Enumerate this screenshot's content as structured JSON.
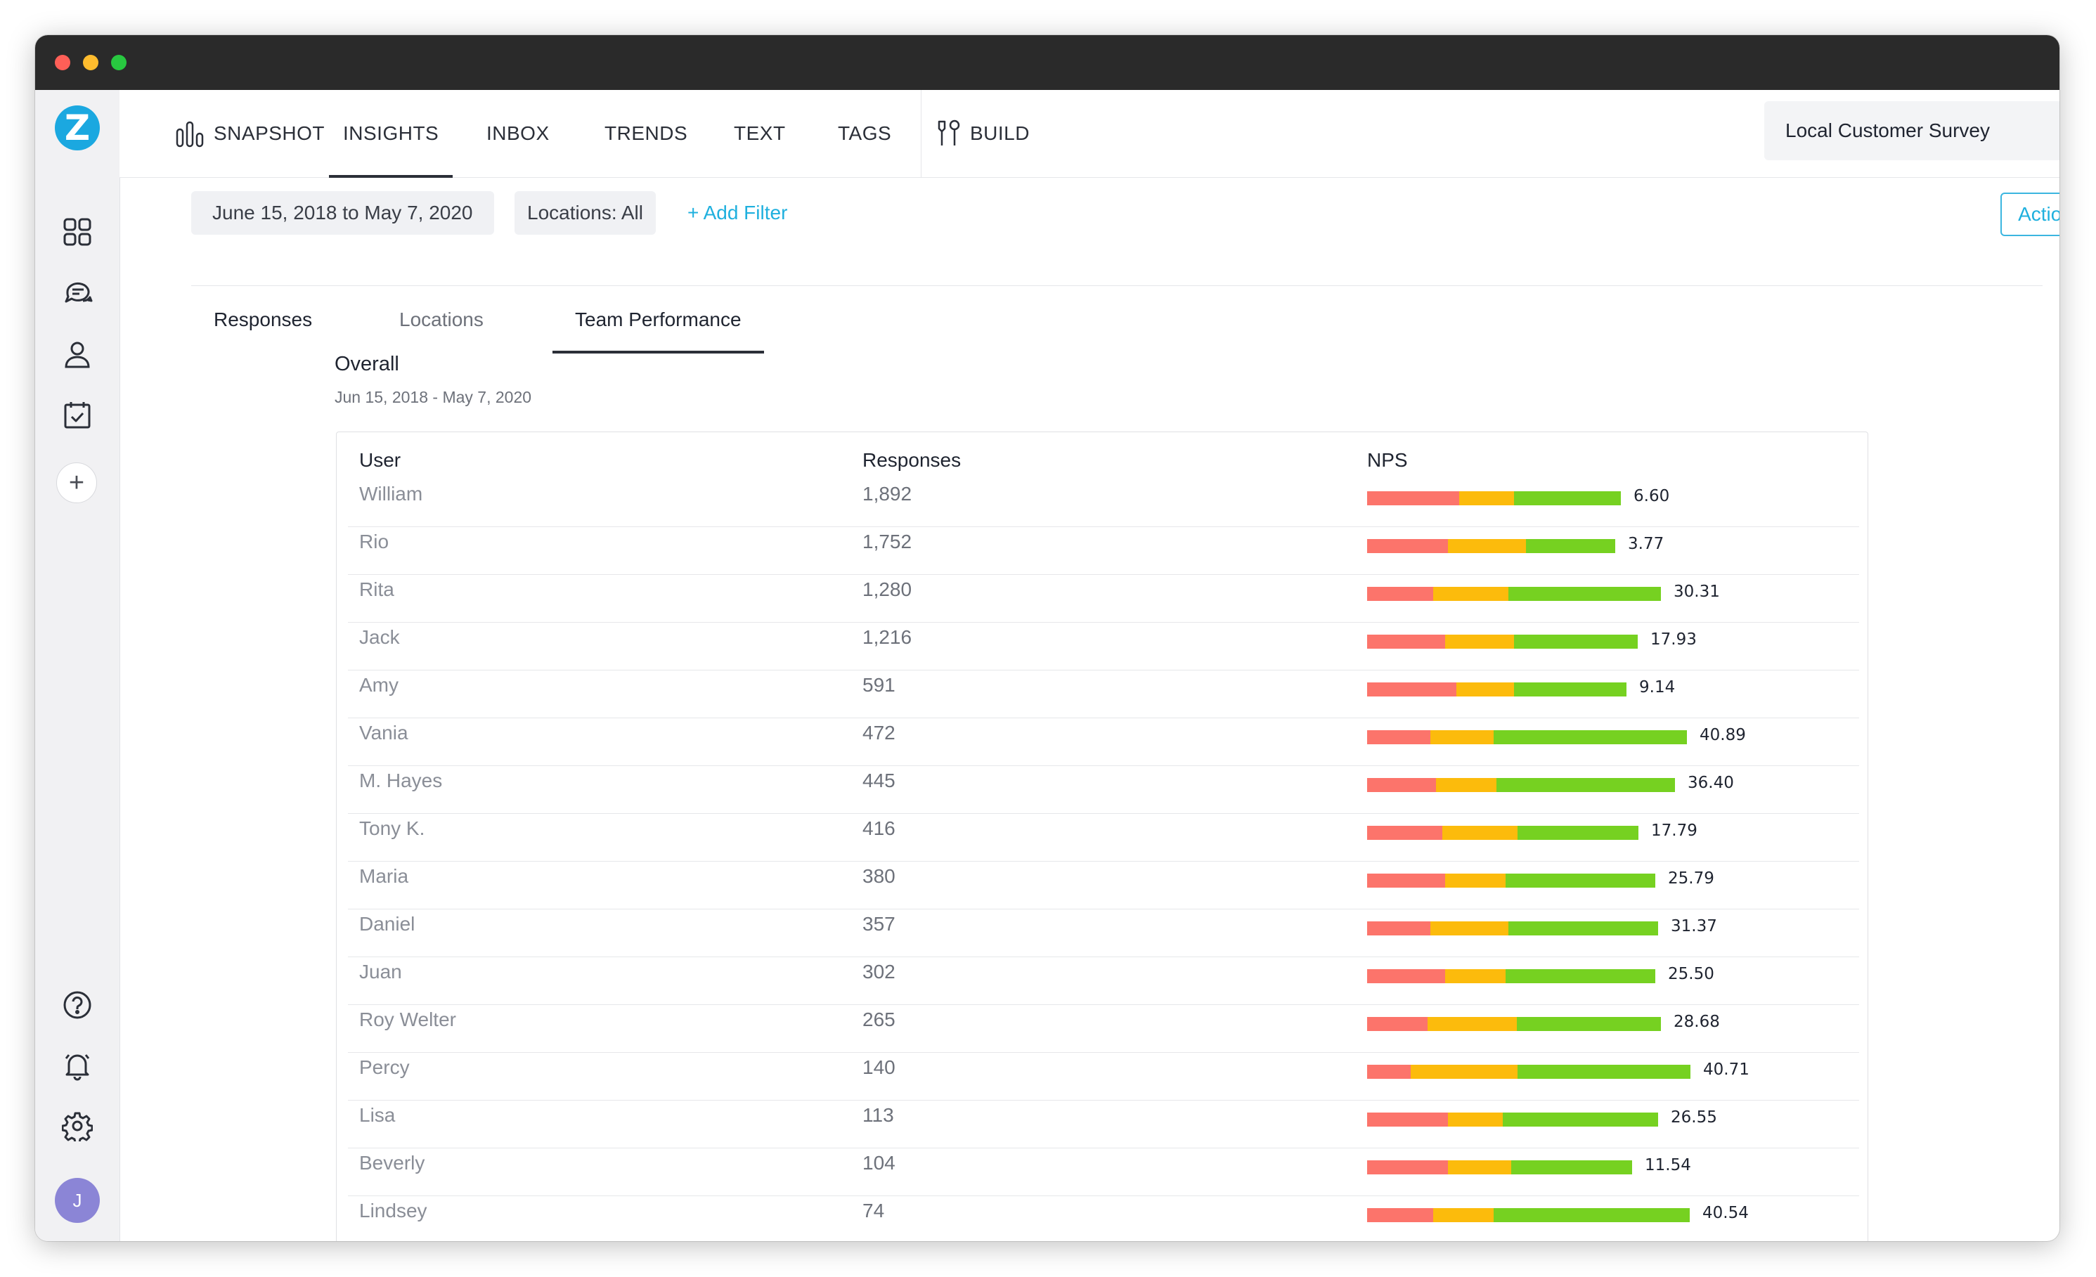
{
  "app": {
    "logo_letter": "Z",
    "avatar_initial": "J"
  },
  "sidebar": {
    "icons": [
      "grid-icon",
      "chat-bubbles-icon",
      "person-icon",
      "calendar-check-icon",
      "plus-icon",
      "help-icon",
      "bell-icon",
      "gear-icon"
    ]
  },
  "nav": {
    "snapshot": "SNAPSHOT",
    "insights": "INSIGHTS",
    "inbox": "INBOX",
    "trends": "TRENDS",
    "text": "TEXT",
    "tags": "TAGS",
    "build": "BUILD",
    "active": "INSIGHTS",
    "survey_select": "Local Customer Survey"
  },
  "filters": {
    "date_range": "June 15, 2018 to May 7, 2020",
    "locations": "Locations: All",
    "add_filter": "+ Add Filter",
    "actions": "Actions"
  },
  "subtabs": {
    "responses": "Responses",
    "locations": "Locations",
    "team_performance": "Team Performance",
    "active": "Team Performance"
  },
  "section": {
    "title": "Overall",
    "subtitle": "Jun 15, 2018 - May 7, 2020"
  },
  "table": {
    "headers": {
      "user": "User",
      "responses": "Responses",
      "nps": "NPS"
    },
    "rows": [
      {
        "user": "William",
        "responses": "1,892",
        "nps": "6.60",
        "nps_share": [
          0.32,
          0.19,
          0.37
        ]
      },
      {
        "user": "Rio",
        "responses": "1,752",
        "nps": "3.77",
        "nps_share": [
          0.28,
          0.27,
          0.31
        ]
      },
      {
        "user": "Rita",
        "responses": "1,280",
        "nps": "30.31",
        "nps_share": [
          0.23,
          0.26,
          0.53
        ]
      },
      {
        "user": "Jack",
        "responses": "1,216",
        "nps": "17.93",
        "nps_share": [
          0.27,
          0.24,
          0.43
        ]
      },
      {
        "user": "Amy",
        "responses": "591",
        "nps": "9.14",
        "nps_share": [
          0.31,
          0.2,
          0.39
        ]
      },
      {
        "user": "Vania",
        "responses": "472",
        "nps": "40.89",
        "nps_share": [
          0.22,
          0.22,
          0.67
        ]
      },
      {
        "user": "M. Hayes",
        "responses": "445",
        "nps": "36.40",
        "nps_share": [
          0.24,
          0.21,
          0.62
        ]
      },
      {
        "user": "Tony K.",
        "responses": "416",
        "nps": "17.79",
        "nps_share": [
          0.26,
          0.26,
          0.42
        ]
      },
      {
        "user": "Maria",
        "responses": "380",
        "nps": "25.79",
        "nps_share": [
          0.27,
          0.21,
          0.52
        ]
      },
      {
        "user": "Daniel",
        "responses": "357",
        "nps": "31.37",
        "nps_share": [
          0.22,
          0.27,
          0.52
        ]
      },
      {
        "user": "Juan",
        "responses": "302",
        "nps": "25.50",
        "nps_share": [
          0.27,
          0.21,
          0.52
        ]
      },
      {
        "user": "Roy Welter",
        "responses": "265",
        "nps": "28.68",
        "nps_share": [
          0.21,
          0.31,
          0.5
        ]
      },
      {
        "user": "Percy",
        "responses": "140",
        "nps": "40.71",
        "nps_share": [
          0.15,
          0.37,
          0.6
        ]
      },
      {
        "user": "Lisa",
        "responses": "113",
        "nps": "26.55",
        "nps_share": [
          0.28,
          0.19,
          0.54
        ]
      },
      {
        "user": "Beverly",
        "responses": "104",
        "nps": "11.54",
        "nps_share": [
          0.28,
          0.22,
          0.42
        ]
      },
      {
        "user": "Lindsey",
        "responses": "74",
        "nps": "40.54",
        "nps_share": [
          0.23,
          0.21,
          0.68
        ]
      }
    ]
  },
  "colors": {
    "detractor": "#fc746b",
    "passive": "#fcbb0c",
    "promoter": "#76d121",
    "accent": "#1fb0de"
  }
}
